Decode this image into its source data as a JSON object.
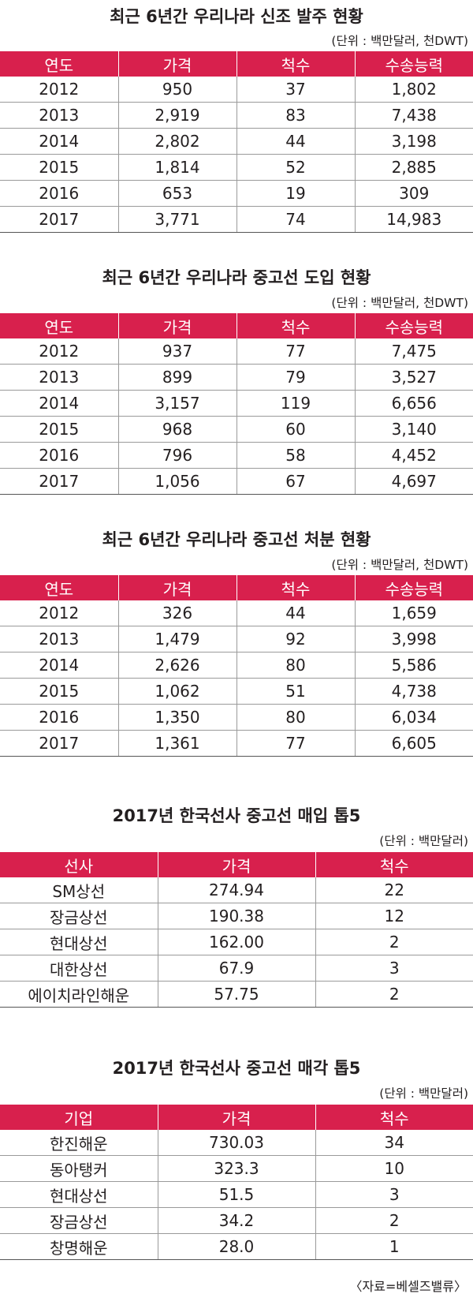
{
  "sections": [
    {
      "title": "최근 6년간 우리나라 신조 발주 현황",
      "unit": "(단위 : 백만달러, 천DWT)",
      "headers": [
        "연도",
        "가격",
        "척수",
        "수송능력"
      ],
      "rows": [
        [
          "2012",
          "950",
          "37",
          "1,802"
        ],
        [
          "2013",
          "2,919",
          "83",
          "7,438"
        ],
        [
          "2014",
          "2,802",
          "44",
          "3,198"
        ],
        [
          "2015",
          "1,814",
          "52",
          "2,885"
        ],
        [
          "2016",
          "653",
          "19",
          "309"
        ],
        [
          "2017",
          "3,771",
          "74",
          "14,983"
        ]
      ]
    },
    {
      "title": "최근 6년간 우리나라 중고선 도입 현황",
      "unit": "(단위 : 백만달러, 천DWT)",
      "headers": [
        "연도",
        "가격",
        "척수",
        "수송능력"
      ],
      "rows": [
        [
          "2012",
          "937",
          "77",
          "7,475"
        ],
        [
          "2013",
          "899",
          "79",
          "3,527"
        ],
        [
          "2014",
          "3,157",
          "119",
          "6,656"
        ],
        [
          "2015",
          "968",
          "60",
          "3,140"
        ],
        [
          "2016",
          "796",
          "58",
          "4,452"
        ],
        [
          "2017",
          "1,056",
          "67",
          "4,697"
        ]
      ]
    },
    {
      "title": "최근 6년간 우리나라 중고선 처분 현황",
      "unit": "(단위 : 백만달러, 천DWT)",
      "headers": [
        "연도",
        "가격",
        "척수",
        "수송능력"
      ],
      "rows": [
        [
          "2012",
          "326",
          "44",
          "1,659"
        ],
        [
          "2013",
          "1,479",
          "92",
          "3,998"
        ],
        [
          "2014",
          "2,626",
          "80",
          "5,586"
        ],
        [
          "2015",
          "1,062",
          "51",
          "4,738"
        ],
        [
          "2016",
          "1,350",
          "80",
          "6,034"
        ],
        [
          "2017",
          "1,361",
          "77",
          "6,605"
        ]
      ]
    },
    {
      "title": "2017년 한국선사 중고선 매입 톱5",
      "unit": "(단위 : 백만달러)",
      "headers": [
        "선사",
        "가격",
        "척수"
      ],
      "rows": [
        [
          "SM상선",
          "274.94",
          "22"
        ],
        [
          "장금상선",
          "190.38",
          "12"
        ],
        [
          "현대상선",
          "162.00",
          "2"
        ],
        [
          "대한상선",
          "67.9",
          "3"
        ],
        [
          "에이치라인해운",
          "57.75",
          "2"
        ]
      ]
    },
    {
      "title": "2017년 한국선사 중고선 매각 톱5",
      "unit": "(단위 : 백만달러)",
      "headers": [
        "기업",
        "가격",
        "척수"
      ],
      "rows": [
        [
          "한진해운",
          "730.03",
          "34"
        ],
        [
          "동아탱커",
          "323.3",
          "10"
        ],
        [
          "현대상선",
          "51.5",
          "3"
        ],
        [
          "장금상선",
          "34.2",
          "2"
        ],
        [
          "창명해운",
          "28.0",
          "1"
        ]
      ]
    }
  ],
  "source": "〈자료=베셀즈밸류〉",
  "colors": {
    "header_bg": "#d8204d",
    "header_text": "#ffffff",
    "text": "#231f20",
    "rule": "#9a9a9a"
  }
}
